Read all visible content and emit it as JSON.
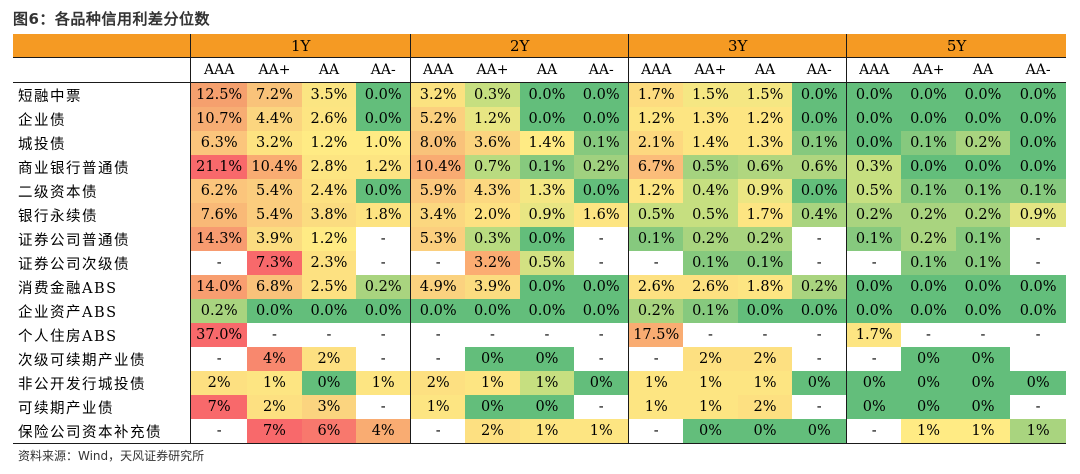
{
  "title": "图6：各品种信用利差分位数",
  "source": "资料来源：Wind，天风证券研究所",
  "tenors": [
    "1Y",
    "2Y",
    "3Y",
    "5Y"
  ],
  "ratings": [
    "AAA",
    "AA+",
    "AA",
    "AA-"
  ],
  "rows": [
    {
      "label": "短融中票",
      "values": [
        "12.5%",
        "7.2%",
        "3.5%",
        "0.0%",
        "3.2%",
        "0.3%",
        "0.0%",
        "0.0%",
        "1.7%",
        "1.5%",
        "1.5%",
        "0.0%",
        "0.0%",
        "0.0%",
        "0.0%",
        "0.0%"
      ]
    },
    {
      "label": "企业债",
      "values": [
        "10.7%",
        "4.4%",
        "2.6%",
        "0.0%",
        "5.2%",
        "1.2%",
        "0.0%",
        "0.0%",
        "1.2%",
        "1.3%",
        "1.2%",
        "0.0%",
        "0.0%",
        "0.0%",
        "0.0%",
        "0.0%"
      ]
    },
    {
      "label": "城投债",
      "values": [
        "6.3%",
        "3.2%",
        "1.2%",
        "1.0%",
        "8.0%",
        "3.6%",
        "1.4%",
        "0.1%",
        "2.1%",
        "1.4%",
        "1.3%",
        "0.1%",
        "0.0%",
        "0.1%",
        "0.2%",
        "0.0%"
      ]
    },
    {
      "label": "商业银行普通债",
      "values": [
        "21.1%",
        "10.4%",
        "2.8%",
        "1.2%",
        "10.4%",
        "0.7%",
        "0.1%",
        "0.2%",
        "6.7%",
        "0.5%",
        "0.6%",
        "0.6%",
        "0.3%",
        "0.0%",
        "0.0%",
        "0.0%"
      ]
    },
    {
      "label": "二级资本债",
      "values": [
        "6.2%",
        "5.4%",
        "2.4%",
        "0.0%",
        "5.9%",
        "4.3%",
        "1.3%",
        "0.0%",
        "1.2%",
        "0.4%",
        "0.9%",
        "0.0%",
        "0.5%",
        "0.1%",
        "0.1%",
        "0.1%"
      ]
    },
    {
      "label": "银行永续债",
      "values": [
        "7.6%",
        "5.4%",
        "3.8%",
        "1.8%",
        "3.4%",
        "2.0%",
        "0.9%",
        "1.6%",
        "0.5%",
        "0.5%",
        "1.7%",
        "0.4%",
        "0.2%",
        "0.2%",
        "0.2%",
        "0.9%"
      ]
    },
    {
      "label": "证券公司普通债",
      "values": [
        "14.3%",
        "3.9%",
        "1.2%",
        "-",
        "5.3%",
        "0.3%",
        "0.0%",
        "-",
        "0.1%",
        "0.2%",
        "0.2%",
        "-",
        "0.1%",
        "0.2%",
        "0.1%",
        "-"
      ]
    },
    {
      "label": "证券公司次级债",
      "values": [
        "-",
        "7.3%",
        "2.3%",
        "-",
        "-",
        "3.2%",
        "0.5%",
        "-",
        "-",
        "0.1%",
        "0.1%",
        "-",
        "-",
        "0.1%",
        "0.1%",
        "-"
      ]
    },
    {
      "label": "消费金融ABS",
      "values": [
        "14.0%",
        "6.8%",
        "2.5%",
        "0.2%",
        "4.9%",
        "3.9%",
        "0.0%",
        "0.0%",
        "2.6%",
        "2.6%",
        "1.8%",
        "0.2%",
        "0.0%",
        "0.0%",
        "0.0%",
        "0.0%"
      ]
    },
    {
      "label": "企业资产ABS",
      "values": [
        "0.2%",
        "0.0%",
        "0.0%",
        "0.0%",
        "0.0%",
        "0.0%",
        "0.0%",
        "0.0%",
        "0.2%",
        "0.1%",
        "0.0%",
        "0.0%",
        "0.0%",
        "0.0%",
        "0.0%",
        "0.0%"
      ]
    },
    {
      "label": "个人住房ABS",
      "values": [
        "37.0%",
        "-",
        "-",
        "-",
        "-",
        "-",
        "-",
        "-",
        "17.5%",
        "-",
        "-",
        "-",
        "1.7%",
        "-",
        "-",
        "-"
      ]
    },
    {
      "label": "次级可续期产业债",
      "values": [
        "-",
        "4%",
        "2%",
        "-",
        "-",
        "0%",
        "0%",
        "-",
        "-",
        "2%",
        "2%",
        "-",
        "-",
        "0%",
        "0%",
        ""
      ]
    },
    {
      "label": "非公开发行城投债",
      "values": [
        "2%",
        "1%",
        "0%",
        "1%",
        "2%",
        "1%",
        "1%",
        "0%",
        "1%",
        "1%",
        "1%",
        "0%",
        "0%",
        "0%",
        "0%",
        "0%"
      ]
    },
    {
      "label": "可续期产业债",
      "values": [
        "7%",
        "2%",
        "3%",
        "-",
        "1%",
        "0%",
        "0%",
        "-",
        "1%",
        "1%",
        "2%",
        "-",
        "0%",
        "0%",
        "0%",
        "-"
      ]
    },
    {
      "label": "保险公司资本补充债",
      "values": [
        "-",
        "7%",
        "6%",
        "4%",
        "-",
        "2%",
        "1%",
        "1%",
        "-",
        "0%",
        "0%",
        "0%",
        "-",
        "1%",
        "1%",
        "1%"
      ]
    }
  ],
  "colors": [
    [
      "#f5a06e",
      "#f9c37a",
      "#fbe582",
      "#63be7b",
      "#fbe280",
      "#c6df80",
      "#63be7b",
      "#63be7b",
      "#fddc80",
      "#f5e783",
      "#f5e783",
      "#63be7b",
      "#63be7b",
      "#63be7b",
      "#63be7b",
      "#63be7b"
    ],
    [
      "#f7ad73",
      "#fbd57f",
      "#fde582",
      "#63be7b",
      "#fbd07e",
      "#e8e683",
      "#63be7b",
      "#63be7b",
      "#fde582",
      "#fde582",
      "#fde582",
      "#63be7b",
      "#63be7b",
      "#63be7b",
      "#63be7b",
      "#63be7b"
    ],
    [
      "#fbc57c",
      "#fde381",
      "#ffeb84",
      "#ffeb84",
      "#f9c27a",
      "#fbd47f",
      "#ffeb84",
      "#86c97e",
      "#fdd87f",
      "#fde582",
      "#fde582",
      "#86c97e",
      "#63be7b",
      "#86c97e",
      "#a9d47f",
      "#63be7b"
    ],
    [
      "#f8696b",
      "#f9ac72",
      "#fde582",
      "#fde582",
      "#f9ab72",
      "#b9db80",
      "#86c97e",
      "#a0d17f",
      "#fbbd7a",
      "#a5d37f",
      "#b0d67f",
      "#b0d67f",
      "#c6df80",
      "#63be7b",
      "#63be7b",
      "#63be7b"
    ],
    [
      "#fbc57c",
      "#fbcd7e",
      "#fde181",
      "#63be7b",
      "#fbc87d",
      "#fcd880",
      "#f5e783",
      "#63be7b",
      "#fde582",
      "#c6df80",
      "#ece683",
      "#63be7b",
      "#c6df80",
      "#86c97e",
      "#86c97e",
      "#86c97e"
    ],
    [
      "#f9b977",
      "#fbcd7e",
      "#fbdc80",
      "#fde381",
      "#fbd77f",
      "#fde181",
      "#e8e683",
      "#fde582",
      "#c6df80",
      "#c6df80",
      "#fde582",
      "#a9d47f",
      "#a9d47f",
      "#a9d47f",
      "#a9d47f",
      "#e4e583"
    ],
    [
      "#f79b70",
      "#fbdc80",
      "#ffeb84",
      "#ffffff",
      "#fbcf7e",
      "#b9db80",
      "#63be7b",
      "#ffffff",
      "#86c97e",
      "#a9d47f",
      "#a9d47f",
      "#ffffff",
      "#86c97e",
      "#a9d47f",
      "#86c97e",
      "#ffffff"
    ],
    [
      "#ffffff",
      "#f8696b",
      "#fde181",
      "#ffffff",
      "#ffffff",
      "#fbac72",
      "#d3e182",
      "#ffffff",
      "#ffffff",
      "#86c97e",
      "#86c97e",
      "#ffffff",
      "#ffffff",
      "#86c97e",
      "#86c97e",
      "#ffffff"
    ],
    [
      "#f89e70",
      "#f9c27a",
      "#fde181",
      "#a9d47f",
      "#fbd27f",
      "#fbdc80",
      "#63be7b",
      "#63be7b",
      "#fde181",
      "#fde181",
      "#fde582",
      "#a9d47f",
      "#63be7b",
      "#63be7b",
      "#63be7b",
      "#63be7b"
    ],
    [
      "#a9d47f",
      "#63be7b",
      "#63be7b",
      "#63be7b",
      "#63be7b",
      "#63be7b",
      "#63be7b",
      "#63be7b",
      "#a9d47f",
      "#86c97e",
      "#63be7b",
      "#63be7b",
      "#63be7b",
      "#63be7b",
      "#63be7b",
      "#63be7b"
    ],
    [
      "#f8696b",
      "#ffffff",
      "#ffffff",
      "#ffffff",
      "#ffffff",
      "#ffffff",
      "#ffffff",
      "#ffffff",
      "#f9ac72",
      "#ffffff",
      "#ffffff",
      "#ffffff",
      "#fde582",
      "#ffffff",
      "#ffffff",
      "#ffffff"
    ],
    [
      "#ffffff",
      "#f8886e",
      "#fde081",
      "#ffffff",
      "#ffffff",
      "#63be7b",
      "#63be7b",
      "#ffffff",
      "#ffffff",
      "#fde081",
      "#fde081",
      "#ffffff",
      "#ffffff",
      "#63be7b",
      "#63be7b",
      "#ffffff"
    ],
    [
      "#fde081",
      "#fde582",
      "#63be7b",
      "#fde582",
      "#fde081",
      "#fde582",
      "#c6df80",
      "#63be7b",
      "#fde582",
      "#fde582",
      "#fde582",
      "#63be7b",
      "#63be7b",
      "#63be7b",
      "#63be7b",
      "#63be7b"
    ],
    [
      "#f8696b",
      "#fde081",
      "#fbd47f",
      "#ffffff",
      "#fde582",
      "#63be7b",
      "#63be7b",
      "#ffffff",
      "#fde582",
      "#fde582",
      "#fde081",
      "#ffffff",
      "#63be7b",
      "#63be7b",
      "#63be7b",
      "#ffffff"
    ],
    [
      "#ffffff",
      "#f8696b",
      "#f8786d",
      "#f9ac72",
      "#ffffff",
      "#fde081",
      "#fde582",
      "#fde582",
      "#ffffff",
      "#63be7b",
      "#63be7b",
      "#63be7b",
      "#ffffff",
      "#ffeb84",
      "#ffeb84",
      "#a9d47f"
    ]
  ]
}
